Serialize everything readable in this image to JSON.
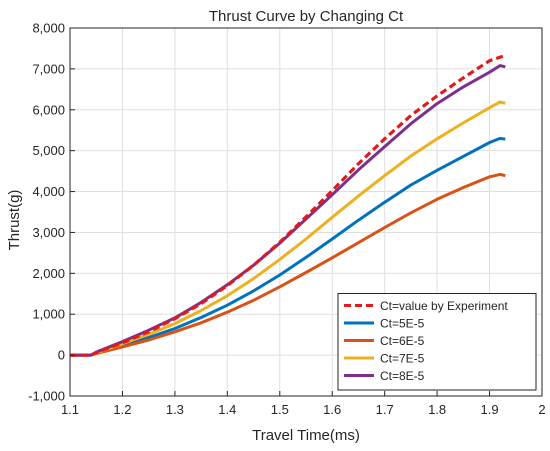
{
  "chart_data": {
    "type": "line",
    "title": "Thrust Curve by Changing Ct",
    "xlabel": "Travel Time(ms)",
    "ylabel": "Thrust(g)",
    "xlim": [
      1.1,
      2.0
    ],
    "ylim": [
      -1000,
      8000
    ],
    "x_ticks": [
      1.1,
      1.2,
      1.3,
      1.4,
      1.5,
      1.6,
      1.7,
      1.8,
      1.9,
      2.0
    ],
    "x_tick_labels": [
      "1.1",
      "1.2",
      "1.3",
      "1.4",
      "1.5",
      "1.6",
      "1.7",
      "1.8",
      "1.9",
      "2"
    ],
    "y_ticks": [
      -1000,
      0,
      1000,
      2000,
      3000,
      4000,
      5000,
      6000,
      7000,
      8000
    ],
    "y_tick_labels": [
      "-1,000",
      "0",
      "1,000",
      "2,000",
      "3,000",
      "4,000",
      "5,000",
      "6,000",
      "7,000",
      "8,000"
    ],
    "grid": true,
    "legend_position": "bottom-right",
    "series": [
      {
        "name": "Ct=value by Experiment",
        "color": "#e31a1c",
        "style": "dashed",
        "x": [
          1.1,
          1.14,
          1.15,
          1.2,
          1.25,
          1.3,
          1.35,
          1.4,
          1.45,
          1.5,
          1.55,
          1.6,
          1.65,
          1.7,
          1.75,
          1.8,
          1.85,
          1.9,
          1.93
        ],
        "y": [
          0,
          0,
          60,
          300,
          570,
          890,
          1260,
          1700,
          2200,
          2760,
          3380,
          4020,
          4680,
          5290,
          5860,
          6340,
          6780,
          7200,
          7330
        ]
      },
      {
        "name": "Ct=5E-5",
        "color": "#0072bd",
        "style": "solid",
        "x": [
          1.1,
          1.14,
          1.15,
          1.2,
          1.25,
          1.3,
          1.35,
          1.4,
          1.45,
          1.5,
          1.55,
          1.6,
          1.65,
          1.7,
          1.75,
          1.8,
          1.85,
          1.9,
          1.92,
          1.93
        ],
        "y": [
          0,
          0,
          50,
          240,
          430,
          650,
          920,
          1220,
          1570,
          1960,
          2390,
          2840,
          3300,
          3740,
          4160,
          4520,
          4860,
          5200,
          5300,
          5280
        ]
      },
      {
        "name": "Ct=6E-5",
        "color": "#d95319",
        "style": "solid",
        "x": [
          1.1,
          1.14,
          1.15,
          1.2,
          1.25,
          1.3,
          1.35,
          1.4,
          1.45,
          1.5,
          1.55,
          1.6,
          1.65,
          1.7,
          1.75,
          1.8,
          1.85,
          1.9,
          1.92,
          1.93
        ],
        "y": [
          0,
          0,
          40,
          200,
          370,
          570,
          790,
          1050,
          1340,
          1670,
          2020,
          2380,
          2750,
          3120,
          3480,
          3810,
          4100,
          4360,
          4420,
          4390
        ]
      },
      {
        "name": "Ct=7E-5",
        "color": "#edb120",
        "style": "solid",
        "x": [
          1.1,
          1.14,
          1.15,
          1.2,
          1.25,
          1.3,
          1.35,
          1.4,
          1.45,
          1.5,
          1.55,
          1.6,
          1.65,
          1.7,
          1.75,
          1.8,
          1.85,
          1.9,
          1.92,
          1.93
        ],
        "y": [
          0,
          0,
          55,
          280,
          510,
          770,
          1090,
          1450,
          1870,
          2340,
          2840,
          3370,
          3890,
          4390,
          4870,
          5290,
          5680,
          6050,
          6190,
          6160
        ]
      },
      {
        "name": "Ct=8E-5",
        "color": "#7e2f8e",
        "style": "solid",
        "x": [
          1.1,
          1.14,
          1.15,
          1.2,
          1.25,
          1.3,
          1.35,
          1.4,
          1.45,
          1.5,
          1.55,
          1.6,
          1.65,
          1.7,
          1.75,
          1.8,
          1.85,
          1.9,
          1.92,
          1.93
        ],
        "y": [
          0,
          0,
          70,
          330,
          610,
          910,
          1290,
          1720,
          2200,
          2740,
          3330,
          3920,
          4530,
          5100,
          5660,
          6150,
          6560,
          6920,
          7080,
          7050
        ]
      }
    ]
  }
}
